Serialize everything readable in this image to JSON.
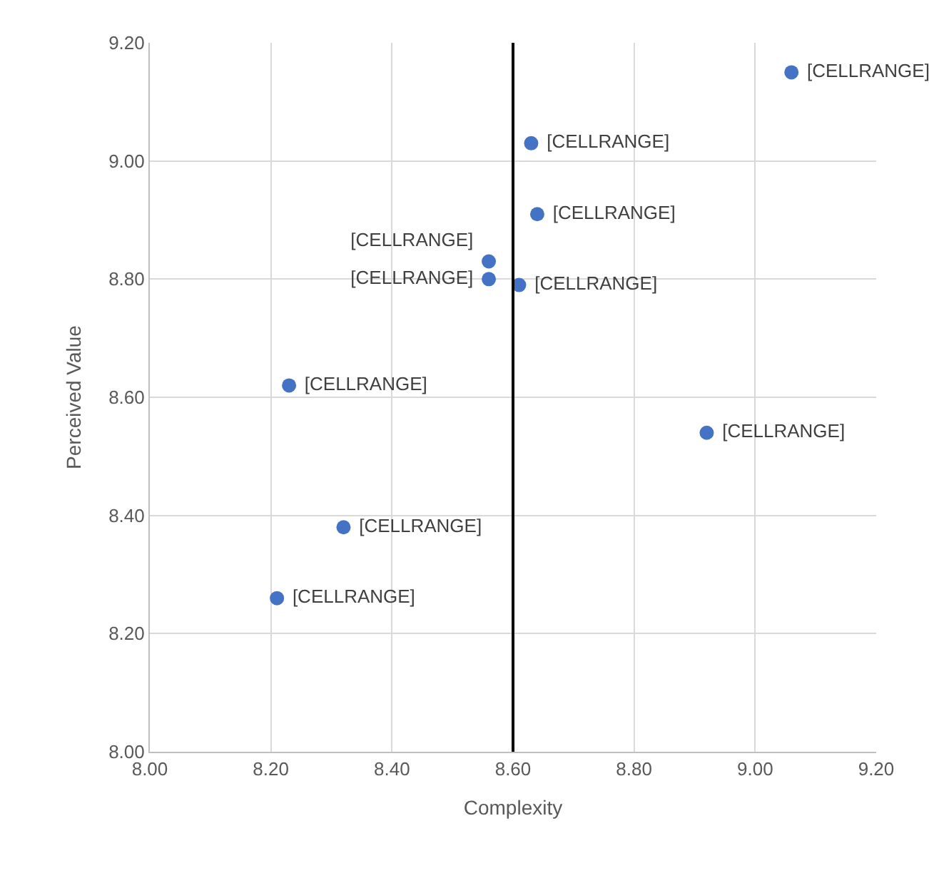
{
  "chart_data": {
    "type": "scatter",
    "xlabel": "Complexity",
    "ylabel": "Perceived Value",
    "x": [
      9.06,
      8.63,
      8.64,
      8.56,
      8.56,
      8.61,
      8.23,
      8.92,
      8.32,
      8.21
    ],
    "series": [
      {
        "color": "#4472c4",
        "values": [
          9.15,
          9.03,
          8.91,
          8.83,
          8.8,
          8.79,
          8.62,
          8.54,
          8.38,
          8.26
        ],
        "value_labels": [
          "[CELLRANGE]",
          "[CELLRANGE]",
          "[CELLRANGE]",
          "[CELLRANGE]",
          "[CELLRANGE]",
          "[CELLRANGE]",
          "[CELLRANGE]",
          "[CELLRANGE]",
          "[CELLRANGE]",
          "[CELLRANGE]"
        ]
      }
    ],
    "xlim": [
      8.0,
      9.2
    ],
    "xticks": [
      {
        "value": 8.0,
        "label": "8.00"
      },
      {
        "value": 8.2,
        "label": "8.20"
      },
      {
        "value": 8.4,
        "label": "8.40"
      },
      {
        "value": 8.6,
        "label": "8.60"
      },
      {
        "value": 8.8,
        "label": "8.80"
      },
      {
        "value": 9.0,
        "label": "9.00"
      },
      {
        "value": 9.2,
        "label": "9.20"
      }
    ],
    "ylim": [
      8.0,
      9.2
    ],
    "yticks": [
      {
        "value": 8.0,
        "label": "8.00"
      },
      {
        "value": 8.2,
        "label": "8.20"
      },
      {
        "value": 8.4,
        "label": "8.40"
      },
      {
        "value": 8.6,
        "label": "8.60"
      },
      {
        "value": 8.8,
        "label": "8.80"
      },
      {
        "value": 9.0,
        "label": "9.00"
      },
      {
        "value": 9.2,
        "label": "9.20"
      }
    ],
    "ref_lines": [
      {
        "axis": "x",
        "value": 8.6,
        "color": "#000000"
      }
    ],
    "grid": true,
    "marker": "circle",
    "legend": false
  }
}
